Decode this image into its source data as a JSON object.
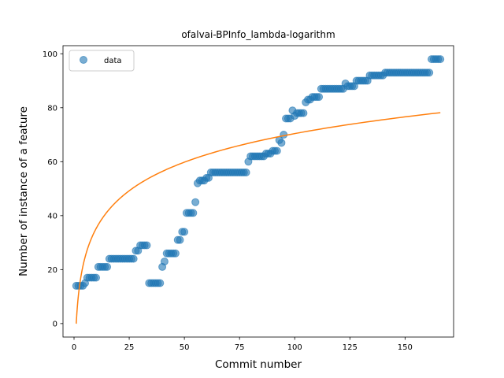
{
  "chart_data": {
    "type": "scatter",
    "title": "ofalvai-BPInfo_lambda-logarithm",
    "xlabel": "Commit number",
    "ylabel": "Number of instance of a feature",
    "xlim": [
      -5,
      172
    ],
    "ylim": [
      -5,
      103
    ],
    "xticks": [
      0,
      25,
      50,
      75,
      100,
      125,
      150
    ],
    "yticks": [
      0,
      20,
      40,
      60,
      80,
      100
    ],
    "legend": {
      "placement": "top-left",
      "entries": [
        "data"
      ]
    },
    "grid": false,
    "colors": {
      "data": "#1f77b4",
      "fit": "#ff7f0e"
    },
    "series": [
      {
        "name": "data",
        "kind": "scatter",
        "x": [
          1,
          2,
          3,
          4,
          5,
          6,
          7,
          8,
          9,
          10,
          11,
          12,
          13,
          14,
          15,
          16,
          17,
          18,
          19,
          20,
          21,
          22,
          23,
          24,
          25,
          26,
          27,
          28,
          29,
          30,
          31,
          32,
          33,
          34,
          35,
          36,
          37,
          38,
          39,
          40,
          41,
          42,
          43,
          44,
          45,
          46,
          47,
          48,
          49,
          50,
          51,
          52,
          53,
          54,
          55,
          56,
          57,
          58,
          59,
          60,
          61,
          62,
          63,
          64,
          65,
          66,
          67,
          68,
          69,
          70,
          71,
          72,
          73,
          74,
          75,
          76,
          77,
          78,
          79,
          80,
          81,
          82,
          83,
          84,
          85,
          86,
          87,
          88,
          89,
          90,
          91,
          92,
          93,
          94,
          95,
          96,
          97,
          98,
          99,
          100,
          101,
          102,
          103,
          104,
          105,
          106,
          107,
          108,
          109,
          110,
          111,
          112,
          113,
          114,
          115,
          116,
          117,
          118,
          119,
          120,
          121,
          122,
          123,
          124,
          125,
          126,
          127,
          128,
          129,
          130,
          131,
          132,
          133,
          134,
          135,
          136,
          137,
          138,
          139,
          140,
          141,
          142,
          143,
          144,
          145,
          146,
          147,
          148,
          149,
          150,
          151,
          152,
          153,
          154,
          155,
          156,
          157,
          158,
          159,
          160,
          161,
          162,
          163,
          164,
          165,
          166
        ],
        "y": [
          14,
          14,
          14,
          14,
          15,
          17,
          17,
          17,
          17,
          17,
          21,
          21,
          21,
          21,
          21,
          24,
          24,
          24,
          24,
          24,
          24,
          24,
          24,
          24,
          24,
          24,
          24,
          27,
          27,
          29,
          29,
          29,
          29,
          15,
          15,
          15,
          15,
          15,
          15,
          21,
          23,
          26,
          26,
          26,
          26,
          26,
          31,
          31,
          34,
          34,
          41,
          41,
          41,
          41,
          45,
          52,
          53,
          53,
          53,
          54,
          54,
          56,
          56,
          56,
          56,
          56,
          56,
          56,
          56,
          56,
          56,
          56,
          56,
          56,
          56,
          56,
          56,
          56,
          60,
          62,
          62,
          62,
          62,
          62,
          62,
          62,
          63,
          63,
          63,
          64,
          64,
          64,
          68,
          67,
          70,
          76,
          76,
          76,
          79,
          77,
          78,
          78,
          78,
          78,
          82,
          83,
          83,
          84,
          84,
          84,
          84,
          87,
          87,
          87,
          87,
          87,
          87,
          87,
          87,
          87,
          87,
          87,
          89,
          88,
          88,
          88,
          88,
          90,
          90,
          90,
          90,
          90,
          90,
          92,
          92,
          92,
          92,
          92,
          92,
          92,
          93,
          93,
          93,
          93,
          93,
          93,
          93,
          93,
          93,
          93,
          93,
          93,
          93,
          93,
          93,
          93,
          93,
          93,
          93,
          93,
          93,
          98,
          98,
          98,
          98,
          98
        ]
      },
      {
        "name": "",
        "kind": "line",
        "formula": "15.29 * ln(x)",
        "x": [
          1,
          166
        ]
      }
    ]
  }
}
